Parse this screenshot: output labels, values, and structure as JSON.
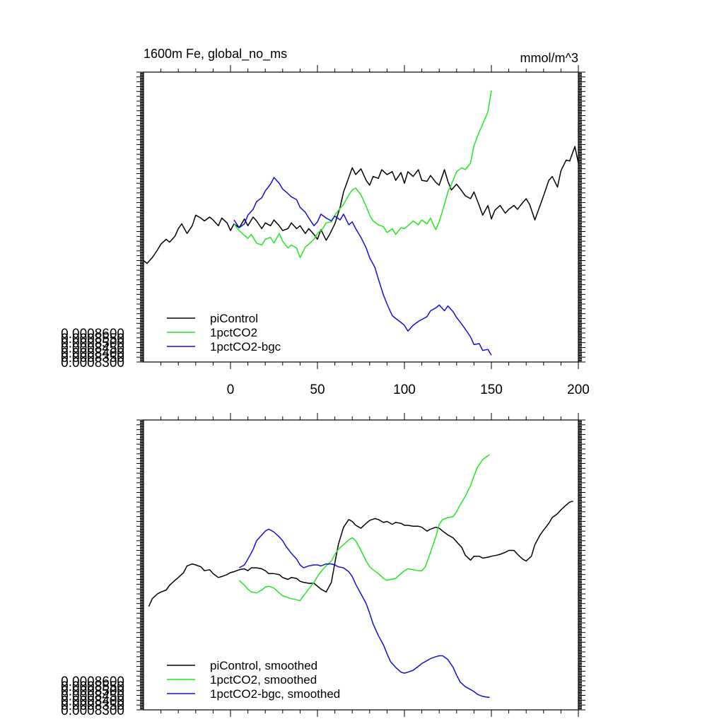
{
  "figure": {
    "title": "1600m Fe, global_no_ms",
    "units": "mmol/m^3"
  },
  "chart_data": [
    {
      "type": "line",
      "title": "1600m Fe, global_no_ms",
      "units": "mmol/m^3",
      "xlabel": "",
      "ylabel": "",
      "xlim": [
        -50,
        200
      ],
      "ylim": [
        0.00083,
        0.00086
      ],
      "x_ticks": [
        "0",
        "50",
        "100",
        "150",
        "200"
      ],
      "y_ticks": [
        "0.0008300",
        "0.0008350",
        "0.0008400",
        "0.0008450",
        "0.0008500",
        "0.0008550",
        "0.0008600"
      ],
      "legend_position": "bottom-left",
      "grid": false,
      "series": [
        {
          "name": "piControl",
          "color": "#000000",
          "x": [
            -50,
            -48,
            -45,
            -42,
            -40,
            -37,
            -35,
            -32,
            -30,
            -28,
            -25,
            -22,
            -20,
            -17,
            -15,
            -12,
            -10,
            -7,
            -5,
            -2,
            0,
            2,
            5,
            8,
            10,
            13,
            15,
            18,
            20,
            23,
            25,
            28,
            30,
            33,
            35,
            38,
            40,
            43,
            45,
            48,
            50,
            52,
            55,
            57,
            60,
            63,
            65,
            68,
            70,
            72,
            75,
            78,
            80,
            82,
            85,
            87,
            90,
            93,
            95,
            98,
            100,
            102,
            105,
            108,
            110,
            113,
            115,
            118,
            120,
            123,
            125,
            127,
            130,
            133,
            135,
            138,
            140,
            143,
            145,
            148,
            150,
            152,
            155,
            158,
            160,
            163,
            165,
            168,
            170,
            172,
            175,
            178,
            180,
            183,
            185,
            188,
            190,
            193,
            195,
            198,
            200
          ],
          "y": [
            0.0008405,
            0.0008402,
            0.0008408,
            0.0008416,
            0.0008422,
            0.0008427,
            0.0008424,
            0.000843,
            0.0008438,
            0.0008443,
            0.0008433,
            0.0008441,
            0.0008452,
            0.0008449,
            0.0008446,
            0.000845,
            0.0008447,
            0.0008441,
            0.0008449,
            0.0008444,
            0.0008436,
            0.0008443,
            0.0008439,
            0.0008448,
            0.0008441,
            0.000845,
            0.0008446,
            0.0008438,
            0.0008444,
            0.0008441,
            0.0008447,
            0.0008441,
            0.0008436,
            0.0008438,
            0.0008444,
            0.0008438,
            0.0008441,
            0.0008433,
            0.0008438,
            0.0008432,
            0.0008427,
            0.0008437,
            0.0008426,
            0.0008432,
            0.0008443,
            0.000846,
            0.0008476,
            0.0008491,
            0.0008501,
            0.0008494,
            0.00085,
            0.0008488,
            0.0008483,
            0.0008492,
            0.000849,
            0.0008499,
            0.0008494,
            0.0008497,
            0.0008488,
            0.0008496,
            0.0008485,
            0.0008497,
            0.0008492,
            0.0008499,
            0.0008488,
            0.0008487,
            0.0008493,
            0.0008486,
            0.0008483,
            0.0008499,
            0.0008487,
            0.0008478,
            0.0008484,
            0.0008477,
            0.0008472,
            0.0008469,
            0.0008476,
            0.0008462,
            0.0008452,
            0.0008462,
            0.0008448,
            0.0008457,
            0.0008462,
            0.0008454,
            0.0008458,
            0.0008462,
            0.0008458,
            0.0008465,
            0.0008469,
            0.0008463,
            0.0008447,
            0.0008462,
            0.0008472,
            0.0008488,
            0.0008492,
            0.0008481,
            0.0008498,
            0.0008509,
            0.0008508,
            0.0008523,
            0.0008506
          ]
        },
        {
          "name": "1pctCO2",
          "color": "#1fe81f",
          "x": [
            2,
            5,
            8,
            10,
            12,
            15,
            18,
            20,
            23,
            25,
            28,
            30,
            33,
            35,
            38,
            40,
            43,
            45,
            48,
            50,
            53,
            55,
            58,
            60,
            63,
            65,
            68,
            70,
            72,
            75,
            78,
            80,
            82,
            85,
            88,
            90,
            93,
            95,
            98,
            100,
            102,
            105,
            108,
            110,
            113,
            115,
            118,
            120,
            123,
            125,
            128,
            130,
            133,
            135,
            138,
            140,
            143,
            145,
            148,
            150
          ],
          "y": [
            0.0008443,
            0.0008436,
            0.0008431,
            0.0008428,
            0.0008432,
            0.0008423,
            0.0008421,
            0.0008427,
            0.0008429,
            0.0008423,
            0.0008433,
            0.0008425,
            0.0008418,
            0.0008421,
            0.0008418,
            0.0008408,
            0.0008419,
            0.0008422,
            0.0008427,
            0.0008433,
            0.0008438,
            0.0008444,
            0.0008445,
            0.0008452,
            0.0008459,
            0.0008463,
            0.0008473,
            0.0008478,
            0.000848,
            0.0008473,
            0.0008461,
            0.0008452,
            0.0008446,
            0.0008442,
            0.000844,
            0.0008434,
            0.0008438,
            0.0008432,
            0.0008439,
            0.0008438,
            0.0008441,
            0.0008446,
            0.0008442,
            0.0008447,
            0.0008443,
            0.0008449,
            0.0008437,
            0.0008445,
            0.0008463,
            0.0008476,
            0.0008488,
            0.0008497,
            0.0008501,
            0.0008499,
            0.0008506,
            0.0008524,
            0.0008538,
            0.0008546,
            0.0008559,
            0.0008581
          ]
        },
        {
          "name": "1pctCO2-bgc",
          "color": "#1010d8",
          "x": [
            2,
            5,
            8,
            10,
            13,
            15,
            18,
            20,
            23,
            25,
            28,
            30,
            32,
            35,
            38,
            40,
            43,
            45,
            48,
            50,
            52,
            55,
            58,
            60,
            63,
            65,
            68,
            70,
            72,
            75,
            78,
            80,
            83,
            85,
            88,
            90,
            93,
            95,
            98,
            100,
            102,
            105,
            108,
            110,
            113,
            115,
            118,
            120,
            123,
            125,
            128,
            130,
            133,
            135,
            138,
            140,
            143,
            145,
            148,
            150
          ],
          "y": [
            0.0008447,
            0.0008439,
            0.0008443,
            0.0008452,
            0.0008458,
            0.0008466,
            0.000847,
            0.0008477,
            0.0008484,
            0.0008491,
            0.0008485,
            0.0008479,
            0.0008476,
            0.0008471,
            0.0008468,
            0.000846,
            0.0008455,
            0.0008449,
            0.0008441,
            0.0008445,
            0.0008453,
            0.0008449,
            0.0008446,
            0.0008451,
            0.0008447,
            0.0008453,
            0.0008442,
            0.0008445,
            0.0008438,
            0.0008429,
            0.0008418,
            0.0008408,
            0.0008398,
            0.0008386,
            0.0008369,
            0.000836,
            0.0008348,
            0.0008345,
            0.0008341,
            0.0008338,
            0.0008332,
            0.0008338,
            0.0008342,
            0.0008344,
            0.0008347,
            0.0008353,
            0.0008356,
            0.0008359,
            0.0008353,
            0.0008358,
            0.0008352,
            0.0008346,
            0.0008339,
            0.0008334,
            0.0008326,
            0.0008318,
            0.0008319,
            0.0008312,
            0.0008313,
            0.0008307
          ]
        }
      ]
    },
    {
      "type": "line",
      "title": "",
      "xlabel": "",
      "ylabel": "",
      "xlim": [
        -50,
        200
      ],
      "ylim": [
        0.00083,
        0.00086
      ],
      "y_ticks": [
        "0.0008300",
        "0.0008350",
        "0.0008400",
        "0.0008450",
        "0.0008500",
        "0.0008550",
        "0.0008600"
      ],
      "legend_position": "bottom-left",
      "grid": false,
      "series": [
        {
          "name": "piControl, smoothed",
          "color": "#000000",
          "x": [
            -47,
            -45,
            -42,
            -40,
            -37,
            -35,
            -32,
            -30,
            -27,
            -25,
            -22,
            -20,
            -17,
            -15,
            -12,
            -10,
            -7,
            -5,
            -2,
            0,
            2,
            5,
            8,
            10,
            12,
            15,
            18,
            20,
            22,
            25,
            28,
            30,
            33,
            35,
            38,
            40,
            42,
            45,
            48,
            50,
            52,
            55,
            58,
            60,
            62,
            65,
            68,
            70,
            72,
            75,
            78,
            80,
            83,
            85,
            88,
            90,
            93,
            95,
            98,
            100,
            102,
            105,
            108,
            110,
            113,
            115,
            118,
            120,
            122,
            125,
            128,
            130,
            133,
            135,
            138,
            140,
            143,
            145,
            148,
            150,
            153,
            155,
            158,
            160,
            163,
            165,
            168,
            170,
            173,
            175,
            178,
            180,
            183,
            185,
            188,
            190,
            193,
            195,
            197
          ],
          "y": [
            0.0008407,
            0.0008415,
            0.000842,
            0.0008422,
            0.0008424,
            0.0008429,
            0.0008434,
            0.0008437,
            0.0008442,
            0.0008449,
            0.0008451,
            0.000845,
            0.0008448,
            0.0008444,
            0.0008445,
            0.0008441,
            0.0008437,
            0.0008438,
            0.000844,
            0.0008442,
            0.0008443,
            0.0008445,
            0.0008446,
            0.0008444,
            0.0008447,
            0.0008447,
            0.0008446,
            0.0008444,
            0.0008441,
            0.0008441,
            0.000844,
            0.0008437,
            0.0008435,
            0.0008437,
            0.0008436,
            0.0008433,
            0.0008432,
            0.0008431,
            0.0008431,
            0.0008428,
            0.0008425,
            0.0008422,
            0.0008432,
            0.0008452,
            0.0008471,
            0.0008489,
            0.0008497,
            0.0008495,
            0.0008491,
            0.0008488,
            0.0008493,
            0.0008496,
            0.0008498,
            0.0008497,
            0.0008494,
            0.0008495,
            0.0008492,
            0.0008494,
            0.0008493,
            0.0008491,
            0.0008491,
            0.000849,
            0.000849,
            0.0008489,
            0.0008485,
            0.0008487,
            0.0008489,
            0.0008488,
            0.0008485,
            0.0008481,
            0.0008478,
            0.0008474,
            0.0008468,
            0.000846,
            0.0008455,
            0.0008459,
            0.0008459,
            0.0008457,
            0.0008458,
            0.0008459,
            0.000846,
            0.0008461,
            0.0008463,
            0.0008465,
            0.0008465,
            0.0008461,
            0.0008456,
            0.0008454,
            0.0008459,
            0.0008471,
            0.0008481,
            0.0008486,
            0.0008493,
            0.0008499,
            0.0008503,
            0.0008507,
            0.0008512,
            0.0008515,
            0.0008516
          ]
        },
        {
          "name": "1pctCO2, smoothed",
          "color": "#1fe81f",
          "x": [
            5,
            8,
            10,
            12,
            15,
            18,
            20,
            22,
            25,
            28,
            30,
            32,
            35,
            38,
            40,
            42,
            45,
            48,
            50,
            52,
            55,
            58,
            60,
            62,
            65,
            68,
            70,
            72,
            75,
            78,
            80,
            82,
            85,
            88,
            90,
            92,
            95,
            98,
            100,
            102,
            105,
            108,
            110,
            112,
            115,
            118,
            120,
            122,
            125,
            128,
            130,
            132,
            135,
            138,
            140,
            142,
            145,
            148,
            149
          ],
          "y": [
            0.0008434,
            0.0008429,
            0.0008425,
            0.0008422,
            0.0008421,
            0.0008424,
            0.0008427,
            0.0008428,
            0.0008426,
            0.0008421,
            0.0008418,
            0.0008417,
            0.0008415,
            0.0008414,
            0.0008413,
            0.0008418,
            0.0008425,
            0.0008432,
            0.0008438,
            0.0008443,
            0.0008449,
            0.0008454,
            0.0008461,
            0.0008466,
            0.0008471,
            0.0008476,
            0.0008478,
            0.0008475,
            0.0008465,
            0.0008454,
            0.0008448,
            0.0008445,
            0.0008441,
            0.0008436,
            0.0008434,
            0.0008435,
            0.0008436,
            0.0008441,
            0.0008444,
            0.0008446,
            0.0008445,
            0.0008444,
            0.0008444,
            0.0008448,
            0.0008463,
            0.0008479,
            0.0008492,
            0.0008497,
            0.0008499,
            0.00085,
            0.0008505,
            0.0008512,
            0.0008521,
            0.0008532,
            0.0008542,
            0.0008551,
            0.0008559,
            0.0008563,
            0.0008564
          ]
        },
        {
          "name": "1pctCO2-bgc, smoothed",
          "color": "#1010d8",
          "x": [
            5,
            8,
            10,
            13,
            15,
            18,
            20,
            22,
            25,
            28,
            30,
            32,
            35,
            38,
            40,
            42,
            45,
            48,
            50,
            52,
            55,
            58,
            60,
            62,
            65,
            68,
            70,
            72,
            75,
            78,
            80,
            82,
            85,
            88,
            90,
            92,
            95,
            98,
            100,
            102,
            105,
            108,
            110,
            112,
            115,
            118,
            120,
            122,
            125,
            128,
            130,
            132,
            135,
            138,
            140,
            142,
            145,
            148,
            149
          ],
          "y": [
            0.0008447,
            0.000845,
            0.0008456,
            0.0008466,
            0.0008475,
            0.0008481,
            0.0008485,
            0.0008487,
            0.0008484,
            0.0008479,
            0.0008475,
            0.0008469,
            0.0008462,
            0.0008456,
            0.000845,
            0.0008447,
            0.0008449,
            0.000845,
            0.000845,
            0.0008449,
            0.0008451,
            0.0008451,
            0.000845,
            0.0008448,
            0.0008447,
            0.0008443,
            0.0008438,
            0.000843,
            0.000842,
            0.000841,
            0.00084,
            0.0008389,
            0.0008377,
            0.0008367,
            0.0008358,
            0.000835,
            0.0008344,
            0.0008339,
            0.0008338,
            0.0008339,
            0.0008341,
            0.0008345,
            0.0008348,
            0.000835,
            0.0008353,
            0.0008355,
            0.0008356,
            0.0008356,
            0.0008352,
            0.0008344,
            0.0008336,
            0.0008329,
            0.0008324,
            0.0008321,
            0.0008319,
            0.0008316,
            0.0008314,
            0.0008313,
            0.0008313
          ]
        }
      ]
    }
  ]
}
